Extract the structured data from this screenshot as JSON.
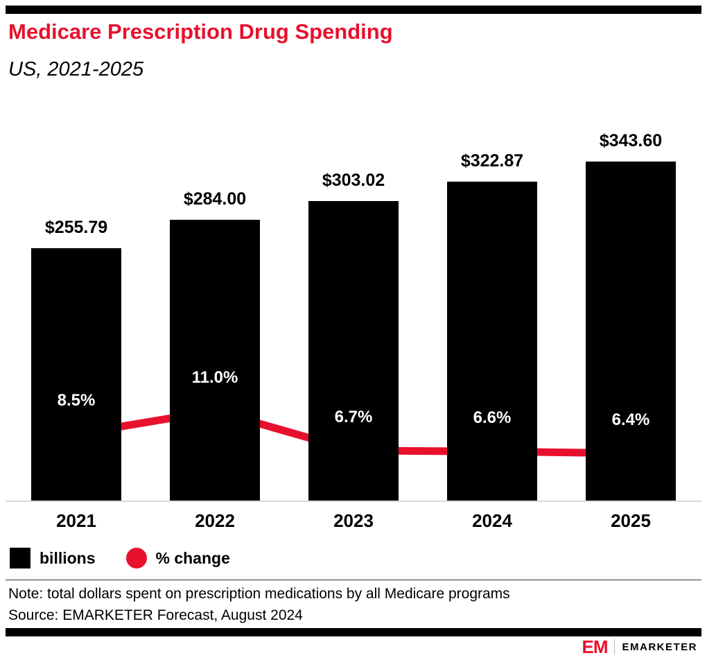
{
  "header": {
    "title": "Medicare Prescription Drug Spending",
    "subtitle": "US, 2021-2025"
  },
  "chart_data": {
    "type": "bar",
    "categories": [
      "2021",
      "2022",
      "2023",
      "2024",
      "2025"
    ],
    "series": [
      {
        "name": "billions",
        "type": "bar",
        "values": [
          255.79,
          284.0,
          303.02,
          322.87,
          343.6
        ],
        "labels": [
          "$255.79",
          "$284.00",
          "$303.02",
          "$322.87",
          "$343.60"
        ],
        "color": "#000000"
      },
      {
        "name": "% change",
        "type": "line",
        "values": [
          8.5,
          11.0,
          6.7,
          6.6,
          6.4
        ],
        "labels": [
          "8.5%",
          "11.0%",
          "6.7%",
          "6.6%",
          "6.4%"
        ],
        "color": "#e8112d"
      }
    ],
    "legend": [
      {
        "label": "billions",
        "color": "#000000",
        "shape": "square"
      },
      {
        "label": "% change",
        "color": "#e8112d",
        "shape": "circle"
      }
    ],
    "title": "Medicare Prescription Drug Spending",
    "xlabel": "",
    "ylabel": "",
    "grid": false,
    "legend_position": "bottom-left"
  },
  "footnote": {
    "note": "Note: total dollars spent on prescription medications by all Medicare programs",
    "source": "Source: EMARKETER Forecast, August 2024"
  },
  "footer": {
    "logo_text": "EM",
    "brand": "EMARKETER"
  },
  "colors": {
    "accent_red": "#e8112d",
    "bar_black": "#000000",
    "axis_gray": "#d9d9d9"
  }
}
